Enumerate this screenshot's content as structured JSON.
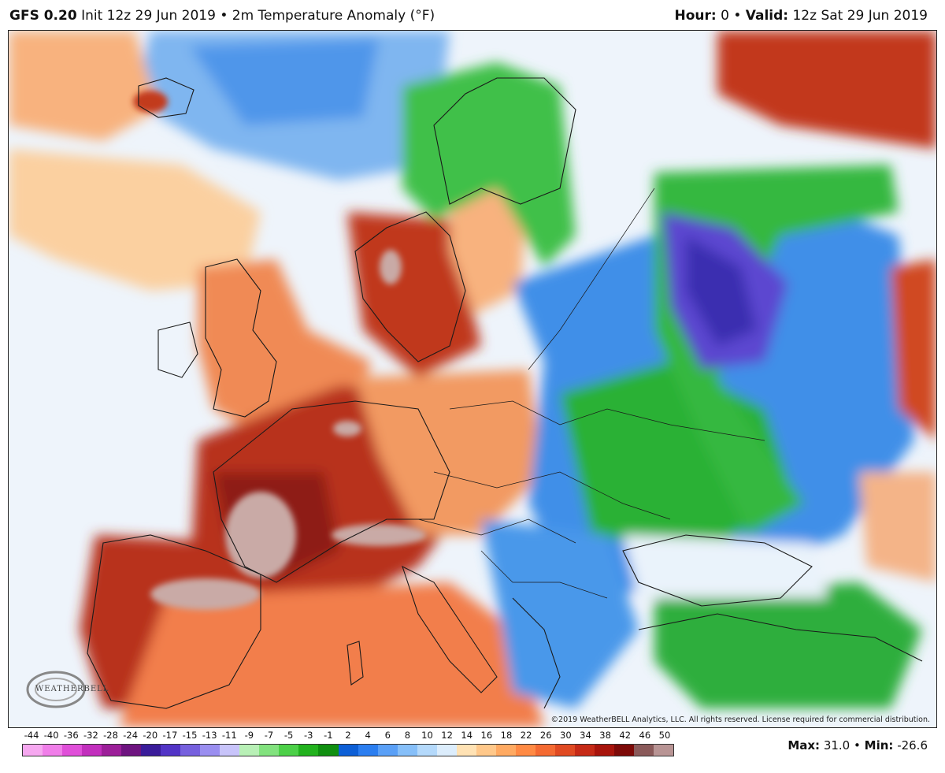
{
  "header": {
    "model": "GFS 0.20",
    "init": "Init 12z 29 Jun 2019",
    "bullet": "•",
    "field": "2m Temperature Anomaly (°F)",
    "hour_label": "Hour:",
    "hour_value": "0",
    "valid_label": "Valid:",
    "valid_value": "12z Sat 29 Jun 2019"
  },
  "map": {
    "copyright": "©2019 WeatherBELL Analytics, LLC. All rights reserved. License required for commercial distribution.",
    "logo_text": "WEATHERBELL"
  },
  "legend": {
    "labels": [
      "-44",
      "-40",
      "-36",
      "-32",
      "-28",
      "-24",
      "-20",
      "-17",
      "-15",
      "-13",
      "-11",
      "-9",
      "-7",
      "-5",
      "-3",
      "-1",
      "2",
      "4",
      "6",
      "8",
      "10",
      "12",
      "14",
      "16",
      "18",
      "22",
      "26",
      "30",
      "34",
      "38",
      "42",
      "46",
      "50"
    ],
    "colors": [
      "#f6a8f0",
      "#f07ee9",
      "#e04fd9",
      "#c22fbd",
      "#9c1f99",
      "#6e1480",
      "#3a1c9a",
      "#5234c6",
      "#7660de",
      "#9a8ef0",
      "#c8c4fa",
      "#b8f0b6",
      "#82e27e",
      "#4cd048",
      "#22b21e",
      "#108f10",
      "#0d5fd6",
      "#2b7ef0",
      "#5aa0f7",
      "#86bff9",
      "#b4d9fb",
      "#dcedfc",
      "#ffe2b4",
      "#ffc88a",
      "#ffaa62",
      "#ff8a44",
      "#f46a32",
      "#e04a22",
      "#c62a16",
      "#a8140c",
      "#7d0a08",
      "#8a5a5a",
      "#b89494"
    ]
  },
  "stats": {
    "max_label": "Max:",
    "max_value": "31.0",
    "min_label": "Min:",
    "min_value": "-26.6"
  },
  "colors": {
    "ocean_neutral": "#eef4fb",
    "warm": "#f7a070",
    "hot": "#c23a1c",
    "very_hot": "#8e1a12",
    "extreme": "#c9aaa6",
    "cool": "#7fb6f0",
    "cold": "#2e7fe0",
    "colder": "#22b430",
    "coldest": "#6a4fd6"
  }
}
